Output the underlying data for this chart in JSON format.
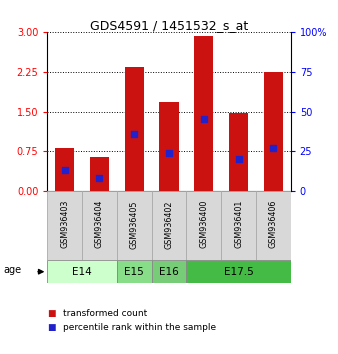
{
  "title": "GDS4591 / 1451532_s_at",
  "samples": [
    "GSM936403",
    "GSM936404",
    "GSM936405",
    "GSM936402",
    "GSM936400",
    "GSM936401",
    "GSM936406"
  ],
  "transformed_count": [
    0.82,
    0.65,
    2.33,
    1.68,
    2.92,
    1.48,
    2.25
  ],
  "percentile_rank_pct": [
    13,
    8,
    36,
    24,
    45,
    20,
    27
  ],
  "ylim_left": [
    0,
    3
  ],
  "ylim_right": [
    0,
    100
  ],
  "yticks_left": [
    0,
    0.75,
    1.5,
    2.25,
    3
  ],
  "yticks_right": [
    0,
    25,
    50,
    75,
    100
  ],
  "age_groups": [
    {
      "label": "E14",
      "indices": [
        0,
        1
      ],
      "color": "#ccffcc"
    },
    {
      "label": "E15",
      "indices": [
        2
      ],
      "color": "#88dd88"
    },
    {
      "label": "E16",
      "indices": [
        3
      ],
      "color": "#77cc77"
    },
    {
      "label": "E17.5",
      "indices": [
        4,
        5,
        6
      ],
      "color": "#44bb44"
    }
  ],
  "bar_color": "#cc1111",
  "percentile_color": "#2222cc",
  "bar_width": 0.55,
  "sample_bg": "#d8d8d8",
  "plot_bg": "#ffffff",
  "legend_items": [
    {
      "label": "transformed count",
      "color": "#cc1111"
    },
    {
      "label": "percentile rank within the sample",
      "color": "#2222cc"
    }
  ]
}
